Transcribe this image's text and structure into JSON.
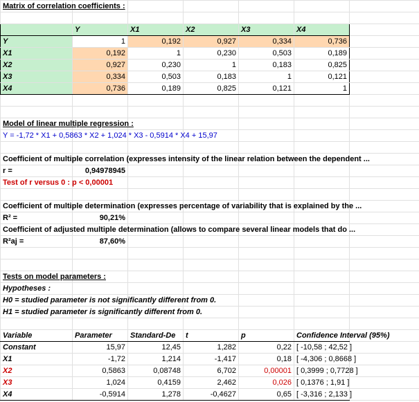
{
  "title": "Matrix of correlation coefficients :",
  "matrix": {
    "headers": [
      "Y",
      "X1",
      "X2",
      "X3",
      "X4"
    ],
    "rows": {
      "Y": [
        "1",
        "0,192",
        "0,927",
        "0,334",
        "0,736"
      ],
      "X1": [
        "0,192",
        "1",
        "0,230",
        "0,503",
        "0,189"
      ],
      "X2": [
        "0,927",
        "0,230",
        "1",
        "0,183",
        "0,825"
      ],
      "X3": [
        "0,334",
        "0,503",
        "0,183",
        "1",
        "0,121"
      ],
      "X4": [
        "0,736",
        "0,189",
        "0,825",
        "0,121",
        "1"
      ]
    }
  },
  "model_title": "Model of linear multiple regression :",
  "model_eq": "Y = -1,72 * X1 + 0,5863 * X2 + 1,024 * X3 - 0,5914 * X4 + 15,97",
  "coef_mult_corr_title": "Coefficient of multiple correlation (expresses intensity of the linear relation between the dependent ...",
  "r_label": "r =",
  "r_value": "0,94978945",
  "test_r": "Test of r versus 0 : p < 0,00001",
  "coef_mult_det_title": "Coefficient of multiple determination (expresses percentage of variability that is explained by the ...",
  "r2_label": "R² =",
  "r2_value": "90,21%",
  "coef_adj_title": "Coefficient of adjusted multiple determination (allows to compare several linear models that do ...",
  "r2aj_label": "R²aj =",
  "r2aj_value": "87,60%",
  "tests_title": "Tests on model parameters :",
  "hyp_title": "Hypotheses :",
  "h0": "H0 = studied parameter is not significantly different from 0.",
  "h1": "H1 = studied parameter is significantly different from 0.",
  "param_headers": [
    "Variable",
    "Parameter",
    "Standard-De",
    "t",
    "p",
    "Confidence Interval (95%)"
  ],
  "params": [
    {
      "v": "Constant",
      "p": "15,97",
      "sd": "12,45",
      "t": "1,282",
      "pv": "0,22",
      "ci": "[ -10,58 ; 42,52 ]",
      "hl": false
    },
    {
      "v": "X1",
      "p": "-1,72",
      "sd": "1,214",
      "t": "-1,417",
      "pv": "0,18",
      "ci": "[ -4,306 ; 0,8668 ]",
      "hl": false
    },
    {
      "v": "X2",
      "p": "0,5863",
      "sd": "0,08748",
      "t": "6,702",
      "pv": "0,00001",
      "ci": "[ 0,3999 ; 0,7728 ]",
      "hl": true
    },
    {
      "v": "X3",
      "p": "1,024",
      "sd": "0,4159",
      "t": "2,462",
      "pv": "0,026",
      "ci": "[ 0,1376 ; 1,91 ]",
      "hl": true
    },
    {
      "v": "X4",
      "p": "-0,5914",
      "sd": "1,278",
      "t": "-0,4627",
      "pv": "0,65",
      "ci": "[ -3,316 ; 2,133 ]",
      "hl": false
    }
  ],
  "colors": {
    "header_bg": "#c6efce",
    "highlight_bg": "#ffd7b0",
    "grid": "#e0e0e0",
    "blue": "#0000cc",
    "red": "#cc0000"
  }
}
